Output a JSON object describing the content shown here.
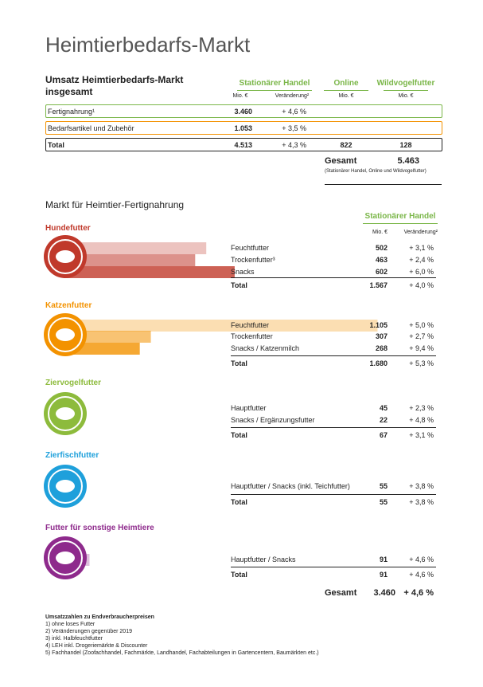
{
  "title": "Heimtierbedarfs-Markt",
  "umsatz": {
    "heading": "Umsatz Heimtierbedarfs-Markt insgesamt",
    "columns": [
      {
        "label": "Stationärer Handel",
        "sub": [
          "Mio. €",
          "Veränderung²"
        ]
      },
      {
        "label": "Online",
        "sub": [
          "Mio. €"
        ]
      },
      {
        "label": "Wildvogelfutter",
        "sub": [
          "Mio. €"
        ]
      }
    ],
    "rows": [
      {
        "label": "Fertignahrung¹",
        "cells": [
          "3.460",
          "+ 4,6 %"
        ]
      },
      {
        "label": "Bedarfsartikel und Zubehör",
        "cells": [
          "1.053",
          "+ 3,5 %"
        ]
      },
      {
        "label": "Total",
        "cells": [
          "4.513",
          "+ 4,3 %",
          "822",
          "128"
        ]
      }
    ],
    "gesamt": {
      "label": "Gesamt",
      "value": "5.463",
      "note": "(Stationärer Handel, Online und Wildvogelfutter)"
    }
  },
  "markt": {
    "heading": "Markt für Heimtier-Fertignahrung",
    "column": "Stationärer Handel",
    "sub": [
      "Mio. €",
      "Veränderung²"
    ],
    "sections": [
      {
        "title": "Hundefutter",
        "color": "#c0392b",
        "rows": [
          {
            "label": "Feuchtfutter",
            "mio": 502,
            "change": "+ 3,1 %"
          },
          {
            "label": "Trockenfutter³",
            "mio": 463,
            "change": "+ 2,4 %"
          },
          {
            "label": "Snacks",
            "mio": 602,
            "change": "+ 6,0 %"
          }
        ],
        "total": {
          "label": "Total",
          "mio": "1.567",
          "change": "+ 4,0 %"
        }
      },
      {
        "title": "Katzenfutter",
        "color": "#f39200",
        "rows": [
          {
            "label": "Feuchtfutter",
            "mio": {
              "value": 1105,
              "label": "1.105"
            },
            "change": "+ 5,0 %"
          },
          {
            "label": "Trockenfutter",
            "mio": 307,
            "change": "+ 2,7 %"
          },
          {
            "label": "Snacks / Katzenmilch",
            "mio": 268,
            "change": "+ 9,4 %"
          }
        ],
        "total": {
          "label": "Total",
          "mio": "1.680",
          "change": "+ 5,3 %"
        }
      },
      {
        "title": "Ziervogelfutter",
        "color": "#8dbb3c",
        "rows": [
          {
            "label": "Hauptfutter",
            "mio": 45,
            "change": "+ 2,3 %"
          },
          {
            "label": "Snacks / Ergänzungsfutter",
            "mio": 22,
            "change": "+ 4,8 %"
          }
        ],
        "total": {
          "label": "Total",
          "mio": "67",
          "change": "+ 3,1 %"
        }
      },
      {
        "title": "Zierfischfutter",
        "color": "#1ea0db",
        "rows": [
          {
            "label": "Hauptfutter / Snacks (inkl. Teichfutter)",
            "mio": 55,
            "change": "+ 3,8 %"
          }
        ],
        "total": {
          "label": "Total",
          "mio": "55",
          "change": "+ 3,8 %"
        }
      },
      {
        "title": "Futter für sonstige Heimtiere",
        "color": "#8e2a8c",
        "rows": [
          {
            "label": "Hauptfutter / Snacks",
            "mio": 91,
            "change": "+ 4,6 %"
          }
        ],
        "total": {
          "label": "Total",
          "mio": "91",
          "change": "+ 4,6 %"
        }
      }
    ],
    "gesamt": {
      "label": "Gesamt",
      "mio": "3.460",
      "change": "+ 4,6 %"
    }
  },
  "footnotes": {
    "heading": "Umsatzzahlen zu Endverbraucherpreisen",
    "items": [
      "1) ohne loses Futter",
      "2) Veränderungen gegenüber 2019",
      "3) inkl. Halbfeuchtfutter",
      "4) LEH inkl. Drogeriemärkte & Discounter",
      "5) Fachhandel (Zoofachhandel, Fachmärkte, Landhandel, Fachabteilungen in Gartencentern, Baumärkten etc.)"
    ]
  }
}
